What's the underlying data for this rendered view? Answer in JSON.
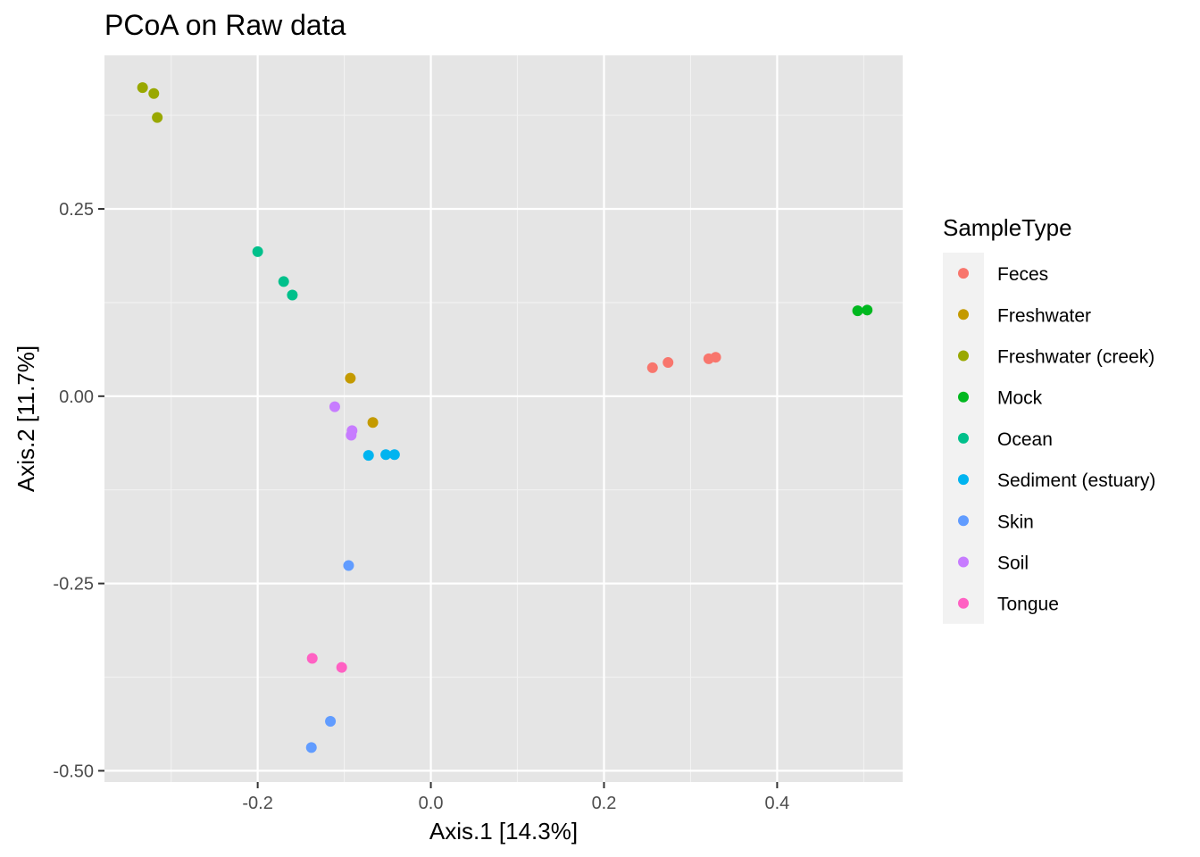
{
  "chart_data": {
    "type": "scatter",
    "title": "PCoA on Raw data",
    "xlabel": "Axis.1   [14.3%]",
    "ylabel": "Axis.2   [11.7%]",
    "xlim": [
      -0.377,
      0.545
    ],
    "ylim": [
      -0.515,
      0.455
    ],
    "x_ticks": [
      -0.2,
      0.0,
      0.2,
      0.4
    ],
    "x_tick_labels": [
      "-0.2",
      "0.0",
      "0.2",
      "0.4"
    ],
    "y_ticks": [
      -0.5,
      -0.25,
      0.0,
      0.25
    ],
    "y_tick_labels": [
      "-0.50",
      "-0.25",
      "0.00",
      "0.25"
    ],
    "grid": true,
    "panel_background": "#e5e5e5",
    "legend": {
      "title": "SampleType",
      "position": "right"
    },
    "series": [
      {
        "name": "Feces",
        "color": "#F8766D",
        "points": [
          [
            0.256,
            0.038
          ],
          [
            0.274,
            0.045
          ],
          [
            0.321,
            0.05
          ],
          [
            0.329,
            0.052
          ]
        ]
      },
      {
        "name": "Freshwater",
        "color": "#C49A00",
        "points": [
          [
            -0.093,
            0.024
          ],
          [
            -0.067,
            -0.035
          ]
        ]
      },
      {
        "name": "Freshwater (creek)",
        "color": "#99A800",
        "points": [
          [
            -0.333,
            0.412
          ],
          [
            -0.32,
            0.404
          ],
          [
            -0.316,
            0.372
          ]
        ]
      },
      {
        "name": "Mock",
        "color": "#00B81F",
        "points": [
          [
            0.493,
            0.114
          ],
          [
            0.504,
            0.115
          ]
        ]
      },
      {
        "name": "Ocean",
        "color": "#00C08B",
        "points": [
          [
            -0.2,
            0.193
          ],
          [
            -0.17,
            0.153
          ],
          [
            -0.16,
            0.135
          ]
        ]
      },
      {
        "name": "Sediment (estuary)",
        "color": "#00B4F0",
        "points": [
          [
            -0.072,
            -0.079
          ],
          [
            -0.052,
            -0.078
          ],
          [
            -0.042,
            -0.078
          ]
        ]
      },
      {
        "name": "Skin",
        "color": "#619CFF",
        "points": [
          [
            -0.095,
            -0.226
          ],
          [
            -0.116,
            -0.434
          ],
          [
            -0.138,
            -0.469
          ]
        ]
      },
      {
        "name": "Soil",
        "color": "#C77CFF",
        "points": [
          [
            -0.111,
            -0.014
          ],
          [
            -0.091,
            -0.046
          ],
          [
            -0.092,
            -0.052
          ]
        ]
      },
      {
        "name": "Tongue",
        "color": "#FF61C3",
        "points": [
          [
            -0.137,
            -0.35
          ],
          [
            -0.103,
            -0.362
          ]
        ]
      }
    ]
  }
}
